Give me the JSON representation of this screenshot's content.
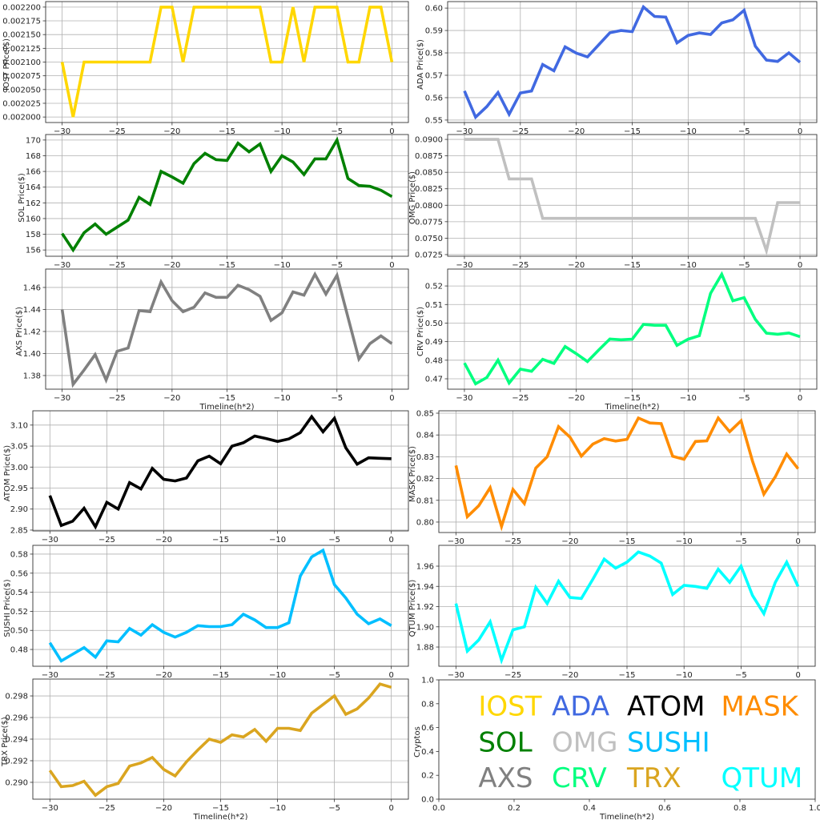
{
  "chart_data": [
    {
      "type": "line",
      "ylabel": "IOST Price($)",
      "xlabel": "",
      "xlim": [
        -31.5,
        1.5
      ],
      "ylim": [
        0.00199,
        0.00221
      ],
      "xticks": [
        "−30",
        "−25",
        "−20",
        "−15",
        "−10",
        "−5",
        "0"
      ],
      "yticks": [
        "0.002000",
        "0.002025",
        "0.002050",
        "0.002075",
        "0.002100",
        "0.002125",
        "0.002150",
        "0.002175",
        "0.002200"
      ],
      "x": [
        -30,
        -29,
        -28,
        -27,
        -26,
        -25,
        -24,
        -23,
        -22,
        -21,
        -20,
        -19,
        -18,
        -17,
        -16,
        -15,
        -14,
        -13,
        -12,
        -11,
        -10,
        -9,
        -8,
        -7,
        -6,
        -5,
        -4,
        -3,
        -2,
        -1,
        0
      ],
      "series": [
        {
          "name": "IOST",
          "color": "#FFD700",
          "values": [
            0.0021,
            0.002,
            0.0021,
            0.0021,
            0.0021,
            0.0021,
            0.0021,
            0.0021,
            0.0021,
            0.0022,
            0.0022,
            0.0021,
            0.0022,
            0.0022,
            0.0022,
            0.0022,
            0.0022,
            0.0022,
            0.0022,
            0.0021,
            0.0021,
            0.0022,
            0.0021,
            0.0022,
            0.0022,
            0.0022,
            0.0021,
            0.0021,
            0.0022,
            0.0022,
            0.0021
          ]
        }
      ]
    },
    {
      "type": "line",
      "ylabel": "ADA  Price($)",
      "xlabel": "",
      "xlim": [
        -31.5,
        1.5
      ],
      "ylim": [
        0.5489,
        0.6029
      ],
      "xticks": [
        "−30",
        "−25",
        "−20",
        "−15",
        "−10",
        "−5",
        "0"
      ],
      "yticks": [
        "0.55",
        "0.56",
        "0.57",
        "0.58",
        "0.59",
        "0.60"
      ],
      "x": [
        -30,
        -29,
        -28,
        -27,
        -26,
        -25,
        -24,
        -23,
        -22,
        -21,
        -20,
        -19,
        -18,
        -17,
        -16,
        -15,
        -14,
        -13,
        -12,
        -11,
        -10,
        -9,
        -8,
        -7,
        -6,
        -5,
        -4,
        -3,
        -2,
        -1,
        0
      ],
      "series": [
        {
          "name": "ADA",
          "color": "#4169E1",
          "values": [
            0.563,
            0.5513,
            0.556,
            0.5623,
            0.5526,
            0.5621,
            0.563,
            0.5748,
            0.572,
            0.5827,
            0.5799,
            0.5782,
            0.5836,
            0.589,
            0.59,
            0.5895,
            0.6005,
            0.5963,
            0.596,
            0.5845,
            0.5878,
            0.5889,
            0.5882,
            0.5934,
            0.5948,
            0.599,
            0.583,
            0.5768,
            0.5762,
            0.58,
            0.5758
          ]
        }
      ]
    },
    {
      "type": "line",
      "ylabel": "SOL Price($)",
      "xlabel": "",
      "xlim": [
        -31.5,
        1.5
      ],
      "ylim": [
        155.2,
        170.7
      ],
      "xticks": [
        "−30",
        "−25",
        "−20",
        "−15",
        "−10",
        "−5",
        "0"
      ],
      "yticks": [
        "156",
        "158",
        "160",
        "162",
        "164",
        "166",
        "168",
        "170"
      ],
      "x": [
        -30,
        -29,
        -28,
        -27,
        -26,
        -25,
        -24,
        -23,
        -22,
        -21,
        -20,
        -19,
        -18,
        -17,
        -16,
        -15,
        -14,
        -13,
        -12,
        -11,
        -10,
        -9,
        -8,
        -7,
        -6,
        -5,
        -4,
        -3,
        -2,
        -1,
        0
      ],
      "series": [
        {
          "name": "SOL",
          "color": "#008000",
          "values": [
            158.1,
            156.0,
            158.2,
            159.3,
            158.0,
            158.9,
            159.8,
            162.7,
            161.8,
            166.0,
            165.3,
            164.5,
            167.0,
            168.3,
            167.5,
            167.4,
            169.6,
            168.5,
            169.5,
            166.0,
            168.0,
            167.2,
            165.6,
            167.6,
            167.6,
            170.0,
            165.1,
            164.2,
            164.1,
            163.6,
            162.8
          ]
        }
      ]
    },
    {
      "type": "line",
      "ylabel": "OMG  Price($)",
      "xlabel": "",
      "xlim": [
        -31.5,
        1.5
      ],
      "ylim": [
        0.07225,
        0.09074
      ],
      "xticks": [
        "−30",
        "−25",
        "−20",
        "−15",
        "−10",
        "−5",
        "0"
      ],
      "yticks": [
        "0.0725",
        "0.0750",
        "0.0775",
        "0.0800",
        "0.0825",
        "0.0850",
        "0.0875",
        "0.0900"
      ],
      "x": [
        -30,
        -29,
        -28,
        -27,
        -26,
        -25,
        -24,
        -23,
        -22,
        -21,
        -20,
        -19,
        -18,
        -17,
        -16,
        -15,
        -14,
        -13,
        -12,
        -11,
        -10,
        -9,
        -8,
        -7,
        -6,
        -5,
        -4,
        -3,
        -2,
        -1,
        0
      ],
      "series": [
        {
          "name": "OMG",
          "color": "#C0C0C0",
          "values": [
            0.09,
            0.09,
            0.09,
            0.09,
            0.084,
            0.084,
            0.084,
            0.078,
            0.078,
            0.078,
            0.078,
            0.078,
            0.078,
            0.078,
            0.078,
            0.078,
            0.078,
            0.078,
            0.078,
            0.078,
            0.078,
            0.078,
            0.078,
            0.078,
            0.078,
            0.078,
            0.078,
            0.0731,
            0.0804,
            0.0804,
            0.0804
          ]
        }
      ]
    },
    {
      "type": "line",
      "ylabel": "AXS Price($)",
      "xlabel": "Timeline(h*2)",
      "xlim": [
        -31.5,
        1.5
      ],
      "ylim": [
        1.3676,
        1.4767
      ],
      "xticks": [
        "−30",
        "−25",
        "−20",
        "−15",
        "−10",
        "−5",
        "0"
      ],
      "yticks": [
        "1.38",
        "1.40",
        "1.42",
        "1.44",
        "1.46"
      ],
      "x": [
        -30,
        -29,
        -28,
        -27,
        -26,
        -25,
        -24,
        -23,
        -22,
        -21,
        -20,
        -19,
        -18,
        -17,
        -16,
        -15,
        -14,
        -13,
        -12,
        -11,
        -10,
        -9,
        -8,
        -7,
        -6,
        -5,
        -4,
        -3,
        -2,
        -1,
        0
      ],
      "series": [
        {
          "name": "AXS",
          "color": "#808080",
          "values": [
            1.44,
            1.372,
            1.385,
            1.399,
            1.376,
            1.402,
            1.405,
            1.439,
            1.438,
            1.465,
            1.448,
            1.438,
            1.442,
            1.455,
            1.451,
            1.451,
            1.462,
            1.458,
            1.452,
            1.43,
            1.437,
            1.456,
            1.453,
            1.472,
            1.454,
            1.471,
            1.433,
            1.395,
            1.409,
            1.416,
            1.409
          ]
        }
      ]
    },
    {
      "type": "line",
      "ylabel": "CRV  Price($)",
      "xlabel": "Timeline(h*2)",
      "xlim": [
        -31.5,
        1.5
      ],
      "ylim": [
        0.4644,
        0.5291
      ],
      "xticks": [
        "−30",
        "−25",
        "−20",
        "−15",
        "−10",
        "−5",
        "0"
      ],
      "yticks": [
        "0.47",
        "0.48",
        "0.49",
        "0.50",
        "0.51",
        "0.52"
      ],
      "x": [
        -30,
        -29,
        -28,
        -27,
        -26,
        -25,
        -24,
        -23,
        -22,
        -21,
        -20,
        -19,
        -18,
        -17,
        -16,
        -15,
        -14,
        -13,
        -12,
        -11,
        -10,
        -9,
        -8,
        -7,
        -6,
        -5,
        -4,
        -3,
        -2,
        -1,
        0
      ],
      "series": [
        {
          "name": "CRV",
          "color": "#00FF7F",
          "values": [
            0.4785,
            0.4673,
            0.4707,
            0.48,
            0.4677,
            0.4752,
            0.474,
            0.4805,
            0.4783,
            0.4874,
            0.4835,
            0.4793,
            0.4855,
            0.4914,
            0.491,
            0.4913,
            0.4993,
            0.4988,
            0.4988,
            0.488,
            0.4913,
            0.4932,
            0.516,
            0.5263,
            0.512,
            0.5137,
            0.502,
            0.4946,
            0.494,
            0.4947,
            0.4927
          ]
        }
      ]
    },
    {
      "type": "line",
      "ylabel": "ATOM  Price($)",
      "xlabel": "",
      "xlim": [
        -31.5,
        1.5
      ],
      "ylim": [
        2.848,
        3.134
      ],
      "xticks": [
        "−30",
        "−25",
        "−20",
        "−15",
        "−10",
        "−5",
        "0"
      ],
      "yticks": [
        "2.85",
        "2.90",
        "2.95",
        "3.00",
        "3.05",
        "3.10"
      ],
      "x": [
        -30,
        -29,
        -28,
        -27,
        -26,
        -25,
        -24,
        -23,
        -22,
        -21,
        -20,
        -19,
        -18,
        -17,
        -16,
        -15,
        -14,
        -13,
        -12,
        -11,
        -10,
        -9,
        -8,
        -7,
        -6,
        -5,
        -4,
        -3,
        -2,
        -1,
        0
      ],
      "series": [
        {
          "name": "ATOM",
          "color": "#000000",
          "values": [
            2.932,
            2.861,
            2.871,
            2.902,
            2.858,
            2.916,
            2.9,
            2.963,
            2.948,
            2.997,
            2.971,
            2.967,
            2.974,
            3.015,
            3.026,
            3.008,
            3.05,
            3.058,
            3.074,
            3.068,
            3.061,
            3.067,
            3.082,
            3.12,
            3.084,
            3.116,
            3.046,
            3.007,
            3.022,
            3.021,
            3.02
          ]
        }
      ]
    },
    {
      "type": "line",
      "ylabel": "MASK  Price($)",
      "xlabel": "",
      "xlim": [
        -31.5,
        1.5
      ],
      "ylim": [
        0.7952,
        0.8511
      ],
      "xticks": [
        "−30",
        "−25",
        "−20",
        "−15",
        "−10",
        "−5",
        "0"
      ],
      "yticks": [
        "0.80",
        "0.81",
        "0.82",
        "0.83",
        "0.84",
        "0.85"
      ],
      "x": [
        -30,
        -29,
        -28,
        -27,
        -26,
        -25,
        -24,
        -23,
        -22,
        -21,
        -20,
        -19,
        -18,
        -17,
        -16,
        -15,
        -14,
        -13,
        -12,
        -11,
        -10,
        -9,
        -8,
        -7,
        -6,
        -5,
        -4,
        -3,
        -2,
        -1,
        0
      ],
      "series": [
        {
          "name": "MASK",
          "color": "#FF8C00",
          "values": [
            0.826,
            0.8025,
            0.8075,
            0.8158,
            0.798,
            0.815,
            0.8085,
            0.8248,
            0.83,
            0.8438,
            0.839,
            0.8303,
            0.8358,
            0.8383,
            0.8372,
            0.838,
            0.8478,
            0.8455,
            0.8452,
            0.8302,
            0.8288,
            0.837,
            0.8373,
            0.8478,
            0.8415,
            0.8465,
            0.828,
            0.8128,
            0.8208,
            0.8312,
            0.8245
          ]
        }
      ]
    },
    {
      "type": "line",
      "ylabel": "SUSHI  Price($)",
      "xlabel": "",
      "xlim": [
        -31.5,
        1.5
      ],
      "ylim": [
        0.4624,
        0.5892
      ],
      "xticks": [
        "−30",
        "−25",
        "−20",
        "−15",
        "−10",
        "−5",
        "0"
      ],
      "yticks": [
        "0.48",
        "0.50",
        "0.52",
        "0.54",
        "0.56",
        "0.58"
      ],
      "x": [
        -30,
        -29,
        -28,
        -27,
        -26,
        -25,
        -24,
        -23,
        -22,
        -21,
        -20,
        -19,
        -18,
        -17,
        -16,
        -15,
        -14,
        -13,
        -12,
        -11,
        -10,
        -9,
        -8,
        -7,
        -6,
        -5,
        -4,
        -3,
        -2,
        -1,
        0
      ],
      "series": [
        {
          "name": "SUSHI",
          "color": "#00BFFF",
          "values": [
            0.487,
            0.468,
            0.475,
            0.482,
            0.472,
            0.489,
            0.488,
            0.502,
            0.495,
            0.506,
            0.498,
            0.493,
            0.498,
            0.505,
            0.504,
            0.504,
            0.506,
            0.517,
            0.511,
            0.503,
            0.503,
            0.508,
            0.557,
            0.577,
            0.584,
            0.548,
            0.534,
            0.517,
            0.507,
            0.512,
            0.505
          ]
        }
      ]
    },
    {
      "type": "line",
      "ylabel": "QTUM Price($)",
      "xlabel": "",
      "xlim": [
        -31.5,
        1.5
      ],
      "ylim": [
        1.861,
        1.9806
      ],
      "xticks": [
        "−30",
        "−25",
        "−20",
        "−15",
        "−10",
        "−5",
        "0"
      ],
      "yticks": [
        "1.88",
        "1.90",
        "1.92",
        "1.94",
        "1.96"
      ],
      "x": [
        -30,
        -29,
        -28,
        -27,
        -26,
        -25,
        -24,
        -23,
        -22,
        -21,
        -20,
        -19,
        -18,
        -17,
        -16,
        -15,
        -14,
        -13,
        -12,
        -11,
        -10,
        -9,
        -8,
        -7,
        -6,
        -5,
        -4,
        -3,
        -2,
        -1,
        0
      ],
      "series": [
        {
          "name": "QTUM",
          "color": "#00FFFF",
          "values": [
            1.923,
            1.876,
            1.887,
            1.905,
            1.867,
            1.897,
            1.9,
            1.939,
            1.923,
            1.945,
            1.929,
            1.928,
            1.947,
            1.967,
            1.958,
            1.964,
            1.974,
            1.97,
            1.963,
            1.932,
            1.941,
            1.94,
            1.938,
            1.957,
            1.944,
            1.96,
            1.931,
            1.913,
            1.944,
            1.964,
            1.94
          ]
        }
      ]
    },
    {
      "type": "line",
      "ylabel": "TRX Price($)",
      "xlabel": "Timeline(h*2)",
      "xlim": [
        -31.5,
        1.5
      ],
      "ylim": [
        0.28844,
        0.29956
      ],
      "xticks": [
        "−30",
        "−25",
        "−20",
        "−15",
        "−10",
        "−5",
        "0"
      ],
      "yticks": [
        "0.290",
        "0.292",
        "0.294",
        "0.296",
        "0.298"
      ],
      "x": [
        -30,
        -29,
        -28,
        -27,
        -26,
        -25,
        -24,
        -23,
        -22,
        -21,
        -20,
        -19,
        -18,
        -17,
        -16,
        -15,
        -14,
        -13,
        -12,
        -11,
        -10,
        -9,
        -8,
        -7,
        -6,
        -5,
        -4,
        -3,
        -2,
        -1,
        0
      ],
      "series": [
        {
          "name": "TRX",
          "color": "#DAA520",
          "values": [
            0.2911,
            0.2896,
            0.2897,
            0.2901,
            0.2888,
            0.2896,
            0.2899,
            0.2915,
            0.2918,
            0.2923,
            0.2912,
            0.2906,
            0.2919,
            0.293,
            0.294,
            0.2937,
            0.2944,
            0.2942,
            0.2949,
            0.2938,
            0.295,
            0.295,
            0.2948,
            0.2964,
            0.2972,
            0.298,
            0.2963,
            0.2968,
            0.2978,
            0.2991,
            0.2988
          ]
        }
      ]
    },
    {
      "type": "legend",
      "ylabel": "Cryptos",
      "xlabel": "Timeline(h*2)",
      "xlim": [
        0,
        1
      ],
      "ylim": [
        0,
        1
      ],
      "xticks": [
        "0.0",
        "0.2",
        "0.4",
        "0.6",
        "0.8",
        "1.0"
      ],
      "yticks": [
        "0.0",
        "0.2",
        "0.4",
        "0.6",
        "0.8",
        "1.0"
      ],
      "entries": [
        {
          "label": "IOST",
          "color": "#FFD700"
        },
        {
          "label": "ADA",
          "color": "#4169E1"
        },
        {
          "label": "ATOM",
          "color": "#000000"
        },
        {
          "label": "MASK",
          "color": "#FF8C00"
        },
        {
          "label": "SOL",
          "color": "#008000"
        },
        {
          "label": "OMG",
          "color": "#C0C0C0"
        },
        {
          "label": "SUSHI",
          "color": "#00BFFF"
        },
        {
          "label": "AXS",
          "color": "#808080"
        },
        {
          "label": "CRV",
          "color": "#00FF7F"
        },
        {
          "label": "TRX",
          "color": "#DAA520"
        },
        {
          "label": "QTUM",
          "color": "#00FFFF"
        }
      ]
    }
  ]
}
